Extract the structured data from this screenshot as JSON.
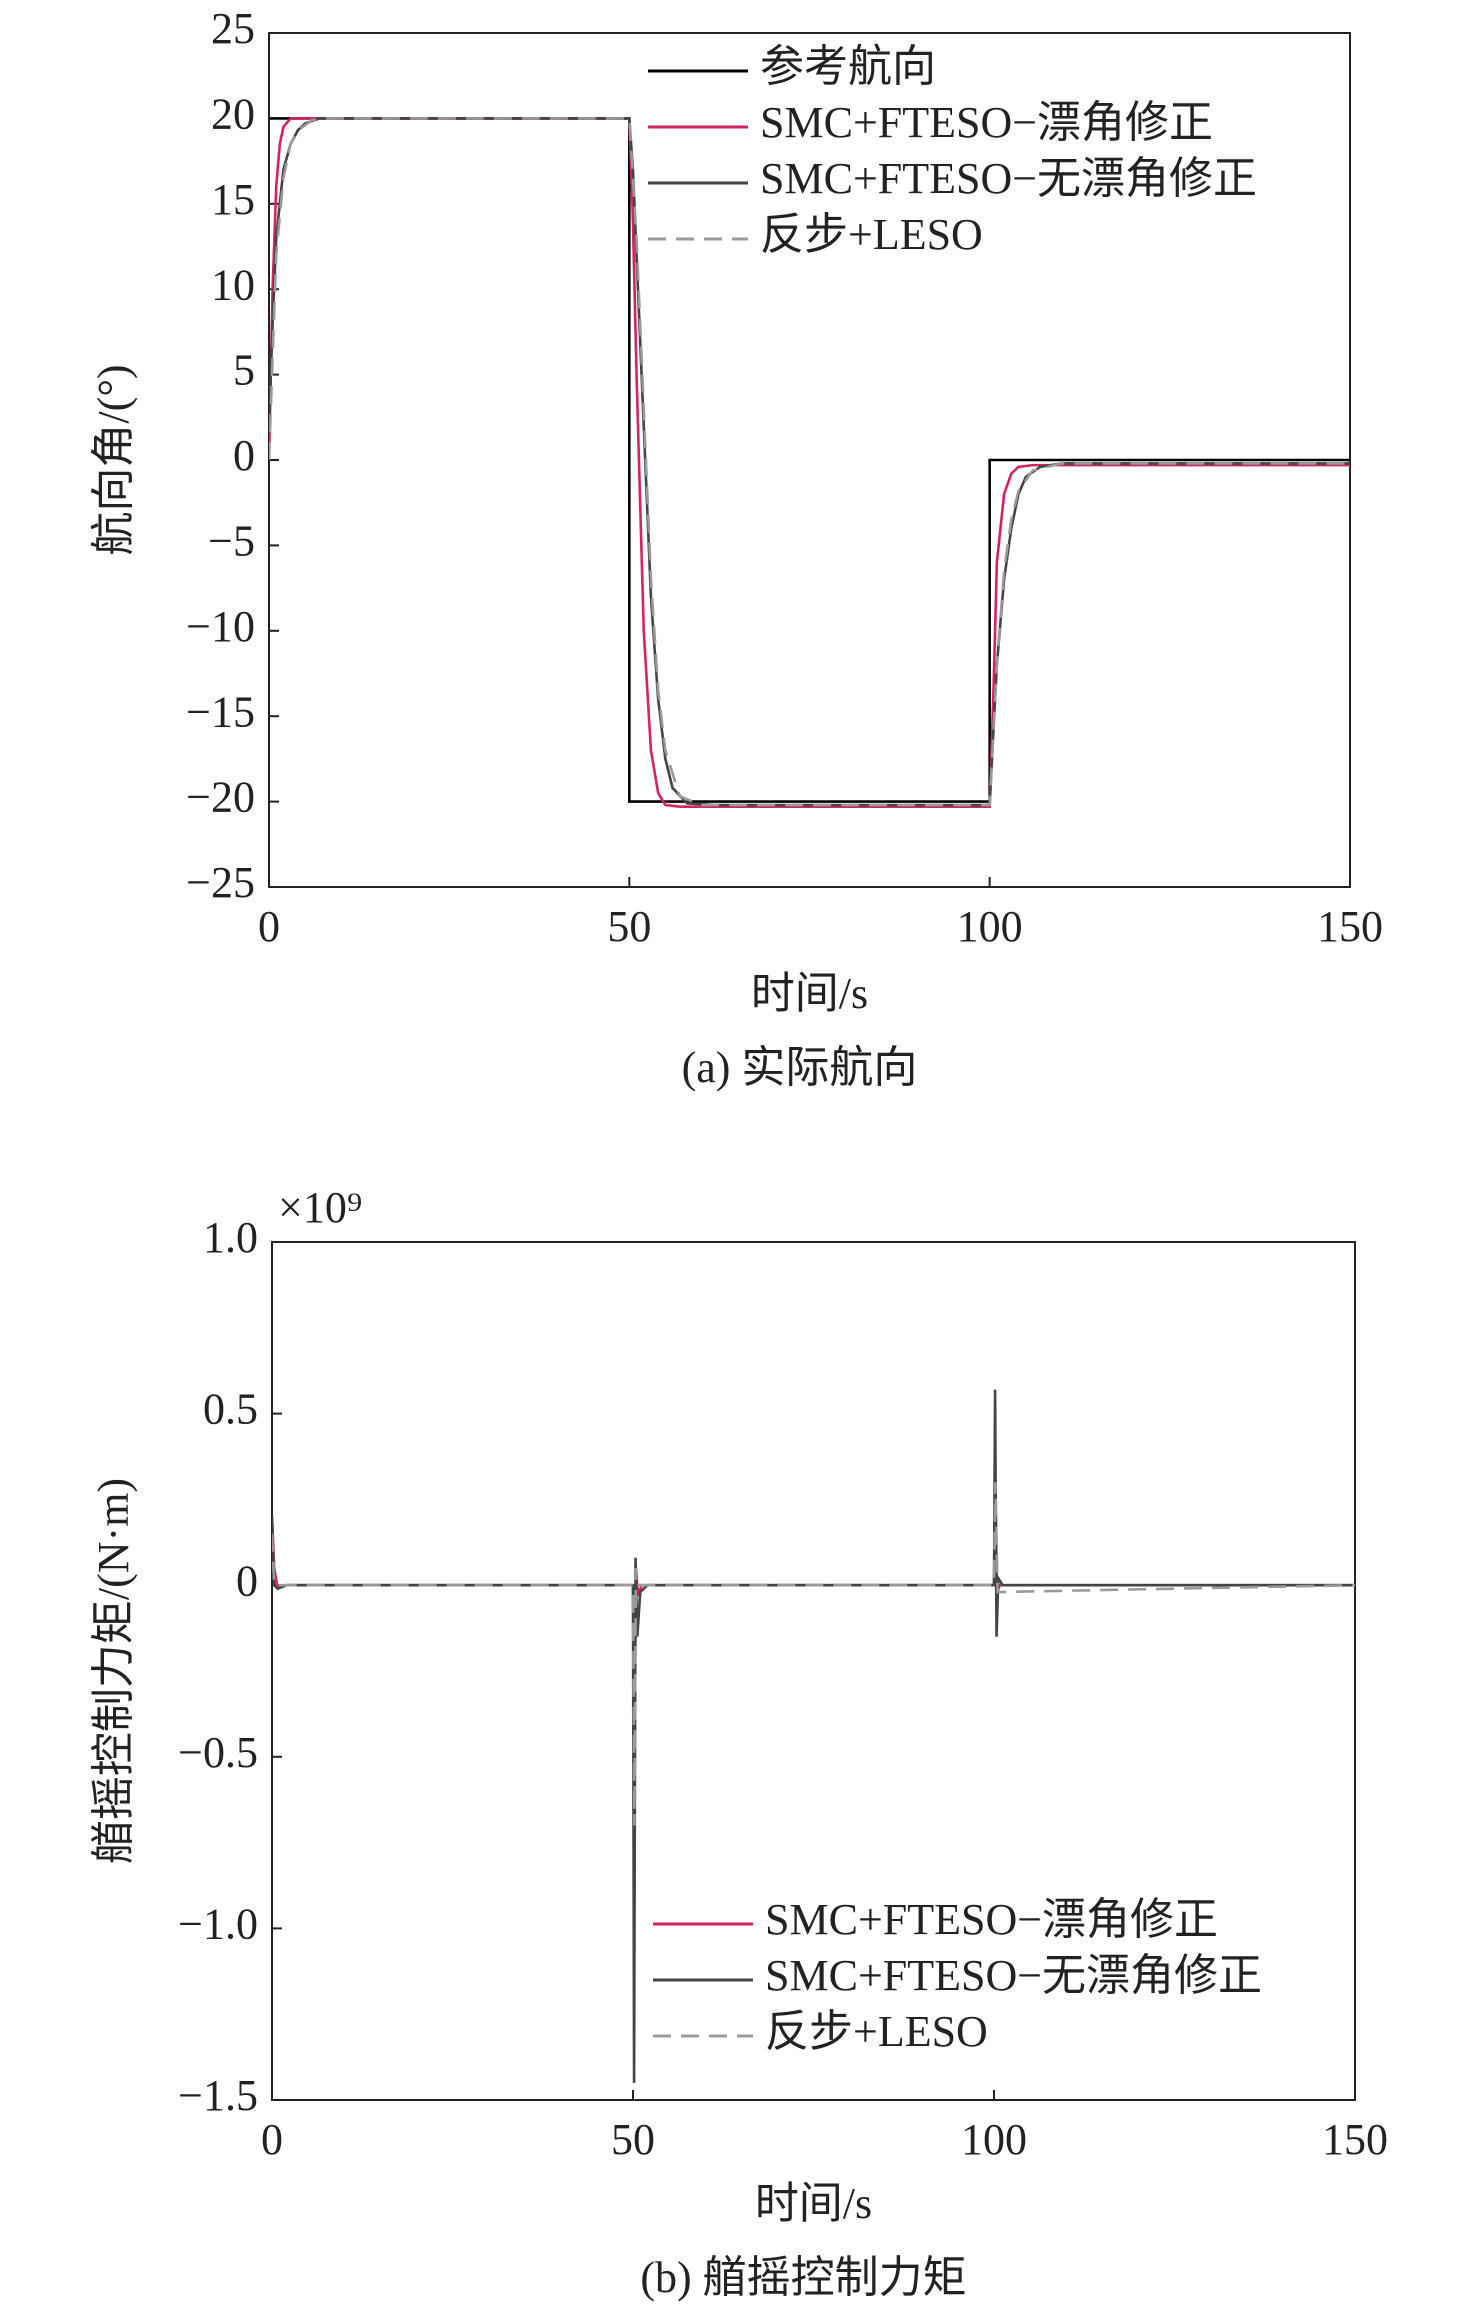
{
  "chart_data": [
    {
      "type": "line",
      "title": "(a) 实际航向",
      "x_label": "时间/s",
      "y_label": "航向角/(°)",
      "xlim": [
        0,
        150
      ],
      "xticks": [
        0,
        50,
        100,
        150
      ],
      "ylim": [
        -25,
        25
      ],
      "yticks": [
        {
          "value": -25,
          "label": "−25"
        },
        {
          "value": -20,
          "label": "−20"
        },
        {
          "value": -15,
          "label": "−15"
        },
        {
          "value": -10,
          "label": "−10"
        },
        {
          "value": -5,
          "label": "−5"
        },
        0,
        5,
        10,
        15,
        20,
        25
      ],
      "legend": "upper right",
      "series": [
        {
          "name": "参考航向",
          "color": "#000000",
          "style": "solid",
          "x": [
            0,
            50,
            50,
            100,
            100,
            150
          ],
          "values": [
            20,
            20,
            -20,
            -20,
            0,
            0
          ]
        },
        {
          "name": "SMC+FTESO−漂角修正",
          "color": "#d6245a",
          "style": "solid",
          "x": [
            0,
            0.5,
            1,
            1.5,
            2,
            3,
            4,
            50,
            50.5,
            51,
            52,
            53,
            54,
            55,
            57,
            60,
            100,
            100.5,
            101,
            102,
            103,
            104,
            106,
            150
          ],
          "values": [
            0,
            10,
            16,
            18.5,
            19.5,
            20,
            20,
            20,
            14,
            5,
            -10,
            -17,
            -19.5,
            -20.2,
            -20.3,
            -20.3,
            -20.3,
            -14,
            -6,
            -2,
            -0.8,
            -0.4,
            -0.3,
            -0.3
          ]
        },
        {
          "name": "SMC+FTESO−无漂角修正",
          "color": "#444444",
          "style": "solid",
          "x": [
            0,
            0.5,
            1,
            2,
            3,
            4,
            5,
            7,
            50,
            50.5,
            51,
            52,
            53,
            54,
            55,
            56,
            58,
            62,
            100,
            100.5,
            101,
            102,
            103,
            104,
            105,
            107,
            110,
            150
          ],
          "values": [
            2,
            8,
            13,
            17,
            18.5,
            19.3,
            19.7,
            20,
            20,
            17,
            12,
            2,
            -8,
            -14,
            -17.5,
            -19.2,
            -20.1,
            -20.2,
            -20.2,
            -16,
            -12,
            -7,
            -4,
            -2,
            -1,
            -0.4,
            -0.2,
            -0.2
          ]
        },
        {
          "name": "反步+LESO",
          "color": "#9a9a9a",
          "style": "dashed",
          "x": [
            0,
            1,
            2,
            3,
            4,
            6,
            8,
            50,
            51,
            52,
            53,
            54,
            55,
            57,
            60,
            100,
            101,
            102,
            103,
            104,
            106,
            110,
            150
          ],
          "values": [
            0,
            12,
            16.5,
            18.5,
            19.3,
            19.9,
            20,
            20,
            13,
            3,
            -7,
            -13.5,
            -17,
            -19.7,
            -20.2,
            -20.2,
            -12,
            -6.5,
            -3.5,
            -1.8,
            -0.6,
            -0.2,
            -0.2
          ]
        }
      ]
    },
    {
      "type": "line",
      "title": "(b) 艏摇控制力矩",
      "x_label": "时间/s",
      "y_label": "艏摇控制力矩/(N·m)",
      "y_scale_label": "×10⁹",
      "xlim": [
        0,
        150
      ],
      "xticks": [
        0,
        50,
        100,
        150
      ],
      "ylim": [
        -1.5,
        1.0
      ],
      "yticks": [
        {
          "value": -1.5,
          "label": "−1.5"
        },
        {
          "value": -1.0,
          "label": "−1.0"
        },
        {
          "value": -0.5,
          "label": "−0.5"
        },
        0,
        0.5,
        {
          "value": 1.0,
          "label": "1.0"
        }
      ],
      "legend": "lower right",
      "series": [
        {
          "name": "SMC+FTESO−漂角修正",
          "color": "#d6245a",
          "style": "solid",
          "x": [
            0,
            0.3,
            0.8,
            2,
            50,
            50.2,
            50.4,
            50.7,
            51.2,
            100,
            100.2,
            100.4,
            100.8,
            150
          ],
          "values": [
            0.2,
            0.05,
            -0.01,
            0,
            0,
            -0.55,
            0.05,
            -0.03,
            0,
            0,
            0.28,
            -0.02,
            0,
            0
          ]
        },
        {
          "name": "SMC+FTESO−无漂角修正",
          "color": "#444444",
          "style": "solid",
          "x": [
            0,
            0.3,
            0.8,
            2,
            50,
            50.15,
            50.35,
            50.6,
            51,
            52,
            100,
            100.15,
            100.35,
            100.6,
            101.2,
            150
          ],
          "values": [
            0.2,
            0,
            -0.01,
            0,
            0,
            -1.45,
            0.08,
            -0.15,
            -0.02,
            0,
            0,
            0.57,
            -0.15,
            0.02,
            0,
            0
          ]
        },
        {
          "name": "反步+LESO",
          "color": "#9a9a9a",
          "style": "dashed",
          "x": [
            0,
            0.3,
            1,
            50,
            50.2,
            50.4,
            50.8,
            100,
            100.2,
            100.5,
            150
          ],
          "values": [
            0.15,
            0,
            0,
            0,
            -0.7,
            0.05,
            0,
            0,
            0.3,
            -0.02,
            0
          ]
        }
      ]
    }
  ]
}
